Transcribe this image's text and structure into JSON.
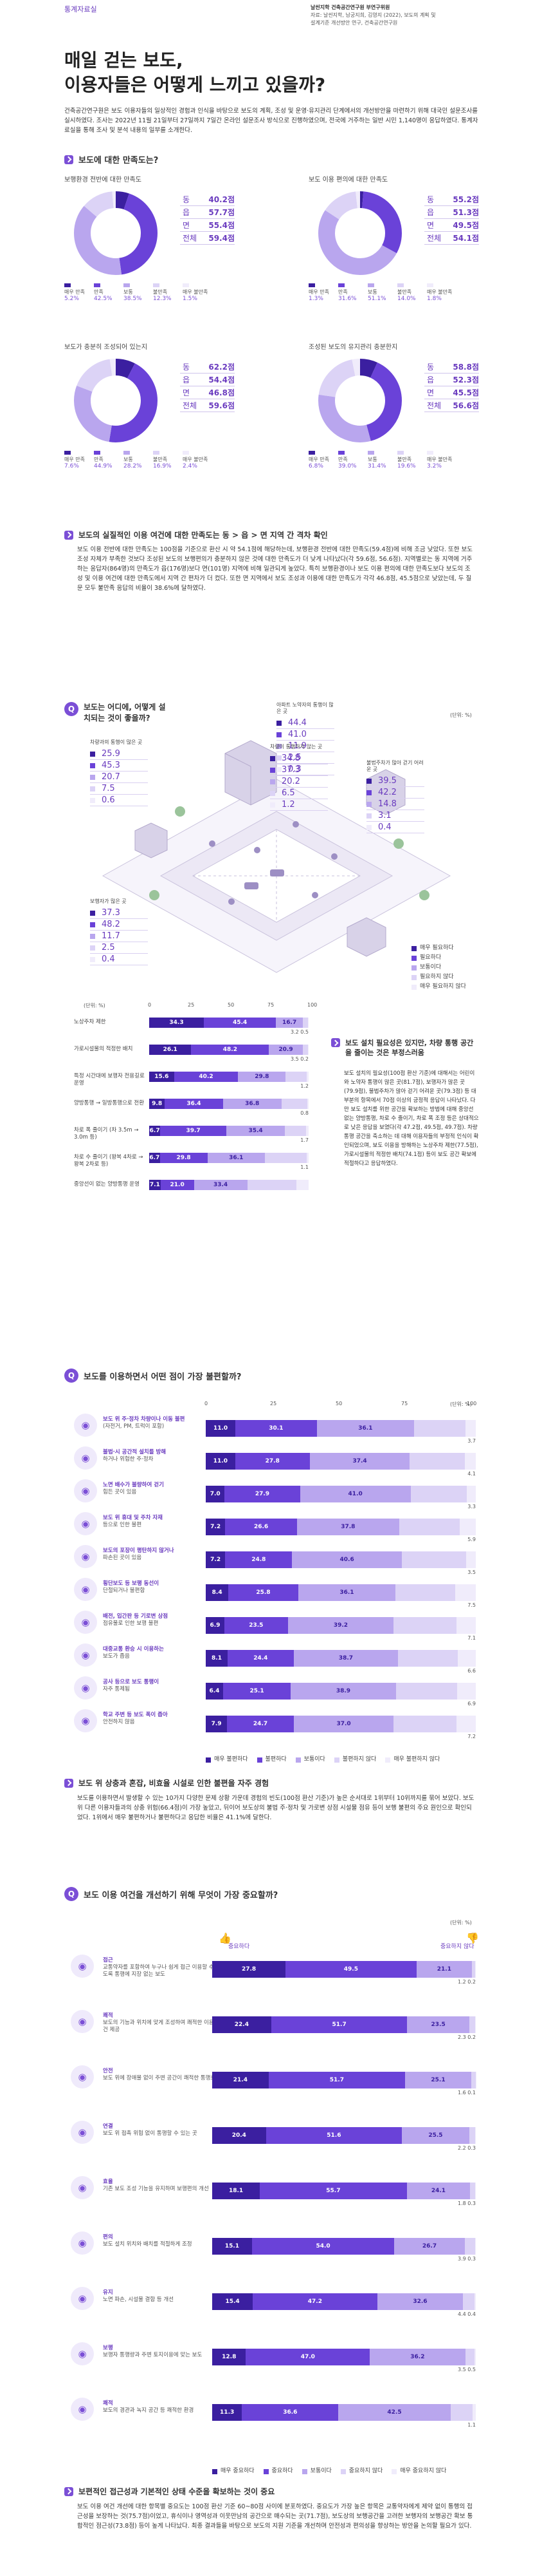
{
  "header": {
    "tag": "통계자료실",
    "credit_line1": "날씬지학 건축공간연구원 부연구위원",
    "credit_line2": "자료: 날씬지학, 남궁지희, 김영지 (2022), 보도의 계획 및",
    "credit_line3": "설계기준 개선방안 연구, 건축공간연구원"
  },
  "title": {
    "line1": "매일 걷는 보도,",
    "line2": "이용자들은 어떻게 느끼고 있을까?"
  },
  "intro": "건축공간연구원은 보도 이용자들의 일상적인 경험과 인식을 바탕으로 보도의 계획, 조성 및 운영·유지관리 단계에서의 개선방안을 마련하기 위해 대국민 설문조사를 실시하였다. 조사는 2022년 11월 21일부터 27일까지 7일간 온라인 설문조사 방식으로 진행하였으며, 전국에 거주하는 일반 시민 1,140명이 응답하였다. 통계자료실을 통해 조사 및 분석 내용의 일부를 소개한다.",
  "q1": {
    "badge": "Q",
    "title": "보도에 대한 만족도는?"
  },
  "donuts": [
    {
      "subtitle": "보행환경 전반에 대한 만족도",
      "rows": [
        {
          "k": "동",
          "v": "40.2점"
        },
        {
          "k": "읍",
          "v": "57.7점"
        },
        {
          "k": "면",
          "v": "55.4점"
        },
        {
          "k": "전체",
          "v": "59.4점"
        }
      ],
      "legend": [
        {
          "k": "매우 만족",
          "v": "5.2%",
          "c": "#3b1fa0"
        },
        {
          "k": "만족",
          "v": "42.5%",
          "c": "#6a42d8"
        },
        {
          "k": "보통",
          "v": "38.5%",
          "c": "#b9a6ee"
        },
        {
          "k": "불만족",
          "v": "12.3%",
          "c": "#dcd3f6"
        },
        {
          "k": "매우 불만족",
          "v": "1.5%",
          "c": "#f0ecfb"
        }
      ],
      "values": [
        5.2,
        42.5,
        38.5,
        12.3,
        1.5
      ]
    },
    {
      "subtitle": "보도 이용 편의에 대한 만족도",
      "rows": [
        {
          "k": "동",
          "v": "55.2점"
        },
        {
          "k": "읍",
          "v": "51.3점"
        },
        {
          "k": "면",
          "v": "49.5점"
        },
        {
          "k": "전체",
          "v": "54.1점"
        }
      ],
      "legend": [
        {
          "k": "매우 만족",
          "v": "1.3%",
          "c": "#3b1fa0"
        },
        {
          "k": "만족",
          "v": "31.6%",
          "c": "#6a42d8"
        },
        {
          "k": "보통",
          "v": "51.1%",
          "c": "#b9a6ee"
        },
        {
          "k": "불만족",
          "v": "14.0%",
          "c": "#dcd3f6"
        },
        {
          "k": "매우 불만족",
          "v": "1.8%",
          "c": "#f0ecfb"
        }
      ],
      "values": [
        1.3,
        31.6,
        51.1,
        14.0,
        1.8
      ]
    },
    {
      "subtitle": "보도가 충분히 조성되어 있는지",
      "rows": [
        {
          "k": "동",
          "v": "62.2점"
        },
        {
          "k": "읍",
          "v": "54.4점"
        },
        {
          "k": "면",
          "v": "46.8점"
        },
        {
          "k": "전체",
          "v": "59.6점"
        }
      ],
      "legend": [
        {
          "k": "매우 만족",
          "v": "7.6%",
          "c": "#3b1fa0"
        },
        {
          "k": "만족",
          "v": "44.9%",
          "c": "#6a42d8"
        },
        {
          "k": "보통",
          "v": "28.2%",
          "c": "#b9a6ee"
        },
        {
          "k": "불만족",
          "v": "16.9%",
          "c": "#dcd3f6"
        },
        {
          "k": "매우 불만족",
          "v": "2.4%",
          "c": "#f0ecfb"
        }
      ],
      "values": [
        7.6,
        44.9,
        28.2,
        16.9,
        2.4
      ]
    },
    {
      "subtitle": "조성된 보도의 유지관리 충분한지",
      "rows": [
        {
          "k": "동",
          "v": "58.8점"
        },
        {
          "k": "읍",
          "v": "52.3점"
        },
        {
          "k": "면",
          "v": "45.5점"
        },
        {
          "k": "전체",
          "v": "56.6점"
        }
      ],
      "legend": [
        {
          "k": "매우 만족",
          "v": "6.8%",
          "c": "#3b1fa0"
        },
        {
          "k": "만족",
          "v": "39.0%",
          "c": "#6a42d8"
        },
        {
          "k": "보통",
          "v": "31.4%",
          "c": "#b9a6ee"
        },
        {
          "k": "불만족",
          "v": "19.6%",
          "c": "#dcd3f6"
        },
        {
          "k": "매우 불만족",
          "v": "3.2%",
          "c": "#f0ecfb"
        }
      ],
      "values": [
        6.8,
        39.0,
        31.4,
        19.6,
        3.2
      ]
    }
  ],
  "finding1": {
    "title": "보도의 실질적인 이용 여건에 대한 만족도는 동 > 읍 > 면 지역 간 격차 확인",
    "body": "보도 이용 전반에 대한 만족도는 100점을 기준으로 환산 시 약 54.1점에 해당하는데, 보행환경 전반에 대한 만족도(59.4점)에 비해 조금 낮았다. 또한 보도 조성 자체가 부족한 것보다 조성된 보도의 보행편의가 충분하지 않은 것에 대한 만족도가 더 낮게 나타났다(각 59.6점, 56.6점). 지역별로는 동 지역에 거주하는 응답자(864명)의 만족도가 읍(176명)보다 면(101명) 지역에 비해 일관되게 높았다. 특히 보행환경이나 보도 이용 편의에 대한 만족도보다 보도의 조성 및 이용 여건에 대한 만족도에서 지역 간 편차가 더 컸다. 또한 면 지역에서 보도 조성과 이용에 대한 만족도가 각각 46.8점, 45.5점으로 낮았는데, 두 질문 모두 불만족 응답의 비율이 38.6%에 달하였다."
  },
  "q2": {
    "badge": "Q",
    "title": "보도는 어디에, 어떻게 설치되는 것이 좋을까?",
    "unit": "(단위: %)"
  },
  "scene": {
    "a": {
      "label": "차량과의 통행이 많은 곳",
      "c": "#4a2fb8",
      "vals": [
        "25.9",
        "45.3",
        "20.7",
        "7.5",
        "0.6"
      ]
    },
    "b": {
      "label": "아파트 노약자의 통행이 많은 곳",
      "vals": [
        "44.4",
        "41.0",
        "11.9",
        "2.5",
        "0.3"
      ]
    },
    "c": {
      "label": "차량이 통행하지 않는 곳",
      "vals": [
        "34.8",
        "37.3",
        "20.2",
        "6.5",
        "1.2"
      ]
    },
    "d": {
      "label": "불법주차가 많아 걷기 어려운 곳",
      "vals": [
        "39.5",
        "42.2",
        "14.8",
        "3.1",
        "0.4"
      ]
    },
    "e": {
      "label": "보행자가 많은 곳",
      "vals": [
        "37.3",
        "48.2",
        "11.7",
        "2.5",
        "0.4"
      ]
    },
    "legend": [
      {
        "k": "매우 필요하다",
        "c": "#3b1fa0"
      },
      {
        "k": "필요하다",
        "c": "#6a42d8"
      },
      {
        "k": "보통이다",
        "c": "#b9a6ee"
      },
      {
        "k": "필요하지 않다",
        "c": "#dcd3f6"
      },
      {
        "k": "매우 필요하지 않다",
        "c": "#f0ecfb"
      }
    ]
  },
  "bars1": {
    "unit": "(단위: %)",
    "axis": [
      "0",
      "25",
      "50",
      "75",
      "100"
    ],
    "rows": [
      {
        "label": "노상주차 제한",
        "vals": [
          34.3,
          45.4,
          16.7,
          3.2,
          0.5
        ],
        "small": "3.2  0.5"
      },
      {
        "label": "가로시설물의 적정한 배치",
        "vals": [
          26.1,
          48.2,
          20.9,
          3.5,
          0.2
        ],
        "small": "3.5  0.2"
      },
      {
        "label": "특정 시간대에 보행자 전용길로 운영",
        "vals": [
          15.6,
          40.2,
          29.8,
          13.2,
          1.2
        ],
        "small": "1.2"
      },
      {
        "label": "양방통행 → 일방통행으로 전환",
        "vals": [
          9.8,
          36.4,
          36.8,
          16.2,
          0.8
        ],
        "small": "0.8"
      },
      {
        "label": "차로 폭 줄이기 (차 3.5m → 3.0m 등)",
        "vals": [
          6.7,
          39.7,
          35.4,
          12.5,
          1.7
        ],
        "small": "1.7"
      },
      {
        "label": "차로 수 줄이기 (왕복 4차로 → 왕복 2차로 등)",
        "vals": [
          6.7,
          29.8,
          36.1,
          26.3,
          1.1
        ],
        "small": "1.1"
      },
      {
        "label": "중앙선이 없는 양방통행 운영",
        "vals": [
          7.1,
          21.0,
          33.4,
          30.8,
          7.7
        ],
        "small": ""
      }
    ]
  },
  "finding2": {
    "title": "보도 설치 필요성은 있지만, 차량 통행 공간을 줄이는 것은 부정스러움",
    "body": "보도 설치의 필요성(100점 환산 기준)에 대해서는 어린이와 노약자 통행이 많은 곳(81.7점), 보행자가 많은 곳(79.9점), 불법주차가 많아 걷기 어려운 곳(79.3점) 등 대부분의 항목에서 70점 이상의 긍정적 응답이 나타났다. 다만 보도 설치를 위한 공간을 확보하는 방법에 대해 중앙선 없는 양방통행, 차로 수 줄이기, 차로 폭 조정 등은 상대적으로 낮은 응답을 보였다(각 47.2점, 49.5점, 49.7점). 차량 통행 공간을 축소하는 데 대해 이용자들의 부정적 인식이 확인되었으며, 보도 이용을 방해하는 노상주차 제한(77.5점), 가로시설물의 적정한 배치(74.1점) 등이 보도 공간 확보에 적절하다고 응답하였다."
  },
  "q3": {
    "badge": "Q",
    "title": "보도를 이용하면서 어떤 점이 가장 불편할까?",
    "unit": "(단위: %)"
  },
  "bars2": {
    "axis": [
      "0",
      "25",
      "50",
      "75",
      "100"
    ],
    "rows": [
      {
        "t1": "보도 위 주·정차 차량이나 이동 불편",
        "t2": "(자전거, PM, 트럭이 포함)",
        "vals": [
          11.0,
          30.1,
          36.1,
          19.1,
          3.7
        ],
        "small": "3.7"
      },
      {
        "t1": "불법·시 공간적 설치를 방해",
        "t2": "하거나 위험한 주·정차",
        "vals": [
          11.0,
          27.8,
          37.4,
          20.5,
          4.1
        ],
        "small": "4.1"
      },
      {
        "t1": "노면 배수가 불량하여 걷기",
        "t2": "힘든 곳이 있음",
        "vals": [
          7.0,
          27.9,
          41.0,
          20.8,
          3.3
        ],
        "small": "3.3"
      },
      {
        "t1": "보도 위 휴대 및 주차 자재",
        "t2": "등으로 인한 불편",
        "vals": [
          7.2,
          26.6,
          37.8,
          22.5,
          5.9
        ],
        "small": "5.9"
      },
      {
        "t1": "보도의 포장이 평탄하지 않거나",
        "t2": "파손된 곳이 있음",
        "vals": [
          7.2,
          24.8,
          40.6,
          23.9,
          3.5
        ],
        "small": "3.5"
      },
      {
        "t1": "횡단보도 등 보행 동선이",
        "t2": "단절되거나 불편함",
        "vals": [
          8.4,
          25.8,
          36.1,
          22.2,
          7.5
        ],
        "small": "7.5"
      },
      {
        "t1": "배전, 입간판 등 기로변 상점",
        "t2": "점유물로 인한 보행 불편",
        "vals": [
          6.9,
          23.5,
          39.2,
          23.3,
          7.1
        ],
        "small": "7.1"
      },
      {
        "t1": "대중교통 환승 시 이용하는",
        "t2": "보도가 좁음",
        "vals": [
          8.1,
          24.4,
          38.7,
          22.1,
          6.6
        ],
        "small": "6.6"
      },
      {
        "t1": "공사 등으로 보도 통행이",
        "t2": "자주 통제됨",
        "vals": [
          6.4,
          25.1,
          38.9,
          22.7,
          6.9
        ],
        "small": "6.9"
      },
      {
        "t1": "학교 주변 등 보도 폭이 좁아",
        "t2": "안전하지 않음",
        "vals": [
          7.9,
          24.7,
          37.0,
          23.2,
          7.2
        ],
        "small": "7.2"
      }
    ],
    "legend": [
      {
        "k": "매우 불편하다",
        "c": "#3b1fa0"
      },
      {
        "k": "불편하다",
        "c": "#6a42d8"
      },
      {
        "k": "보통이다",
        "c": "#b9a6ee"
      },
      {
        "k": "불편하지 않다",
        "c": "#dcd3f6"
      },
      {
        "k": "매우 불편하지 않다",
        "c": "#f0ecfb"
      }
    ]
  },
  "finding3": {
    "title": "보도 위 상충과 혼잡, 비효율 시설로 인한 불편을 자주 경험",
    "body": "보도를 이용하면서 발생할 수 있는 10가지 다양한 문제 상황 가운데 경험의 빈도(100점 환산 기준)가 높은 순서대로 1위부터 10위까지를 묶어 보았다. 보도 위 다른 이용자들과의 상충 위험(66.4점)이 가장 높았고, 뒤이어 보도상의 불법 주·정차 및 가로변 상점 시설물 점유 등이 보행 불편의 주요 원인으로 확인되었다. 1위에서 매우 불편하거나 불편하다고 응답한 비율은 41.1%에 달한다."
  },
  "q4": {
    "badge": "Q",
    "title": "보도 이용 여건을 개선하기 위해 무엇이 가장 중요할까?",
    "unit": "(단위: %)",
    "left_label": "중요하다",
    "right_label": "중요하지 않다"
  },
  "bars3": {
    "rows": [
      {
        "t1": "접근",
        "t2": "교통약자를 포함하여 누구나 쉽게 접근 이용할 수 있도록 통행에 지장 없는 보도",
        "vals": [
          27.8,
          49.5,
          21.1,
          1.2,
          0.2
        ],
        "small": "1.2  0.2"
      },
      {
        "t1": "쾌적",
        "t2": "보도의 기능과 위치에 맞게 조성하여 쾌적한 이용 여건 제공",
        "vals": [
          22.4,
          51.7,
          23.5,
          2.3,
          0.2
        ],
        "small": "2.3  0.2"
      },
      {
        "t1": "안전",
        "t2": "보도 위에 장애물 없이 주변 공간이 쾌적한 통행로",
        "vals": [
          21.4,
          51.7,
          25.1,
          1.6,
          0.1
        ],
        "small": "1.6  0.1"
      },
      {
        "t1": "연결",
        "t2": "보도 위 접촉 위험 없이 통행할 수 있는 곳",
        "vals": [
          20.4,
          51.6,
          25.5,
          2.2,
          0.3
        ],
        "small": "2.2  0.3"
      },
      {
        "t1": "효율",
        "t2": "기존 보도 조성 기능을 유지하며 보행편의 개선",
        "vals": [
          18.1,
          55.7,
          24.1,
          1.8,
          0.3
        ],
        "small": "1.8  0.3"
      },
      {
        "t1": "편의",
        "t2": "보도 설치 위치와 배치를 적절하게 조정",
        "vals": [
          15.1,
          54.0,
          26.7,
          3.9,
          0.3
        ],
        "small": "3.9  0.3"
      },
      {
        "t1": "유지",
        "t2": "노면 파손, 시설물 결함 등 개선",
        "vals": [
          15.4,
          47.2,
          32.6,
          4.4,
          0.4
        ],
        "small": "4.4  0.4"
      },
      {
        "t1": "보행",
        "t2": "보행자 통행량과 주변 토지이용에 맞는 보도",
        "vals": [
          12.8,
          47.0,
          36.2,
          3.5,
          0.5
        ],
        "small": "3.5  0.5"
      },
      {
        "t1": "쾌적",
        "t2": "보도의 경관과 녹지 공간 등 쾌적한 환경",
        "vals": [
          11.3,
          36.6,
          42.5,
          8.5,
          1.1
        ],
        "small": "1.1"
      }
    ],
    "legend": [
      {
        "k": "매우 중요하다",
        "c": "#3b1fa0"
      },
      {
        "k": "중요하다",
        "c": "#6a42d8"
      },
      {
        "k": "보통이다",
        "c": "#b9a6ee"
      },
      {
        "k": "중요하지 않다",
        "c": "#dcd3f6"
      },
      {
        "k": "매우 중요하지 않다",
        "c": "#f0ecfb"
      }
    ]
  },
  "finding4": {
    "title": "보편적인 접근성과 기본적인 상태 수준을 확보하는 것이 중요",
    "body": "보도 이용 여건 개선에 대한 항목별 중요도는 100점 환산 기준 60~80점 사이에 분포하였다. 중요도가 가장 높은 항목은 교통약자에게 제약 없이 통행의 접근성을 보장하는 것(75.7점)이었고, 휴식이나 영역성과 이웃만남의 공간으로 매수되는 곳(71.7점), 보도상의 보행공간을 고려한 보행자의 보행공간 확보 통합적인 점근성(73.8점) 등이 높게 나타났다. 최종 결과들을 바탕으로 보도의 지원 기준을 개선하며 안전성과 편의성을 향상하는 방안을 논의할 필요가 있다."
  }
}
